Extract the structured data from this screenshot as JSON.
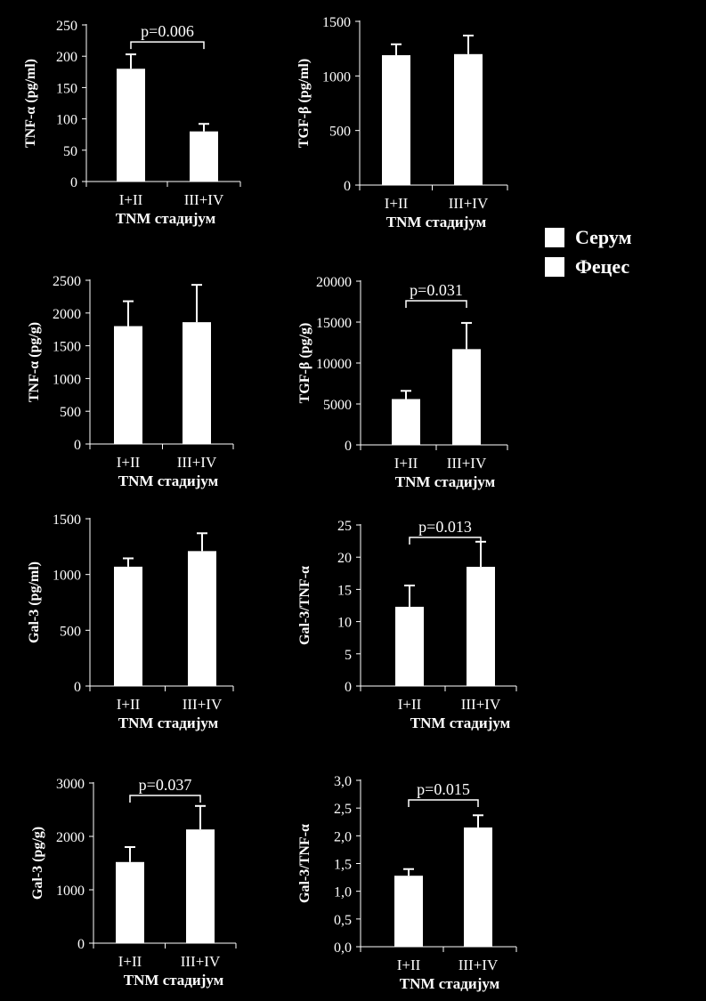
{
  "legend": {
    "items": [
      "Серум",
      "Фецес"
    ]
  },
  "chart_data": [
    {
      "type": "bar",
      "ylabel": "TNF-α (pg/ml)",
      "xlabel": "TNM стадијум",
      "categories": [
        "I+II",
        "III+IV"
      ],
      "values": [
        180,
        80
      ],
      "errors": [
        23,
        12
      ],
      "ylim": [
        0,
        250
      ],
      "yticks": [
        0,
        50,
        100,
        150,
        200,
        250
      ],
      "yticklabels": [
        "0",
        "50",
        "100",
        "150",
        "200",
        "250"
      ],
      "pvalue": "p=0.006"
    },
    {
      "type": "bar",
      "ylabel": "TGF-β (pg/ml)",
      "xlabel": "TNM стадијум",
      "categories": [
        "I+II",
        "III+IV"
      ],
      "values": [
        1190,
        1200
      ],
      "errors": [
        100,
        170
      ],
      "ylim": [
        0,
        1500
      ],
      "yticks": [
        0,
        500,
        1000,
        1500
      ],
      "yticklabels": [
        "0",
        "500",
        "1000",
        "1500"
      ],
      "pvalue": ""
    },
    {
      "type": "bar",
      "ylabel": "TNF-α (pg/g)",
      "xlabel": "TNM стадијум",
      "categories": [
        "I+II",
        "III+IV"
      ],
      "values": [
        1800,
        1860
      ],
      "errors": [
        380,
        570
      ],
      "ylim": [
        0,
        2500
      ],
      "yticks": [
        0,
        500,
        1000,
        1500,
        2000,
        2500
      ],
      "yticklabels": [
        "0",
        "500",
        "1000",
        "1500",
        "2000",
        "2500"
      ],
      "pvalue": ""
    },
    {
      "type": "bar",
      "ylabel": "TGF-β (pg/g)",
      "xlabel": "TNM стадијум",
      "categories": [
        "I+II",
        "III+IV"
      ],
      "values": [
        5600,
        11700
      ],
      "errors": [
        1000,
        3200
      ],
      "ylim": [
        0,
        20000
      ],
      "yticks": [
        0,
        5000,
        10000,
        15000,
        20000
      ],
      "yticklabels": [
        "0",
        "5000",
        "10000",
        "15000",
        "20000"
      ],
      "pvalue": "p=0.031"
    },
    {
      "type": "bar",
      "ylabel": "Gal-3 (pg/ml)",
      "xlabel": "TNM стадијум",
      "categories": [
        "I+II",
        "III+IV"
      ],
      "values": [
        1070,
        1210
      ],
      "errors": [
        75,
        160
      ],
      "ylim": [
        0,
        1500
      ],
      "yticks": [
        0,
        500,
        1000,
        1500
      ],
      "yticklabels": [
        "0",
        "500",
        "1000",
        "1500"
      ],
      "pvalue": ""
    },
    {
      "type": "bar",
      "ylabel": "Gal-3/TNF-α",
      "xlabel": "TNM стадијум",
      "categories": [
        "I+II",
        "III+IV"
      ],
      "values": [
        12.3,
        18.5
      ],
      "errors": [
        3.3,
        3.9
      ],
      "ylim": [
        0,
        25
      ],
      "yticks": [
        0,
        5,
        10,
        15,
        20,
        25
      ],
      "yticklabels": [
        "0",
        "5",
        "10",
        "15",
        "20",
        "25"
      ],
      "pvalue": "p=0.013"
    },
    {
      "type": "bar",
      "ylabel": "Gal-3 (pg/g)",
      "xlabel": "TNM стадијум",
      "categories": [
        "I+II",
        "III+IV"
      ],
      "values": [
        1520,
        2130
      ],
      "errors": [
        280,
        440
      ],
      "ylim": [
        0,
        3000
      ],
      "yticks": [
        0,
        1000,
        2000,
        3000
      ],
      "yticklabels": [
        "0",
        "1000",
        "2000",
        "3000"
      ],
      "pvalue": "p=0.037"
    },
    {
      "type": "bar",
      "ylabel": "Gal-3/TNF-α",
      "xlabel": "TNM стадијум",
      "categories": [
        "I+II",
        "III+IV"
      ],
      "values": [
        1.28,
        2.15
      ],
      "errors": [
        0.12,
        0.22
      ],
      "ylim": [
        0,
        3
      ],
      "yticks": [
        0,
        0.5,
        1,
        1.5,
        2,
        2.5,
        3
      ],
      "yticklabels": [
        "0,0",
        "0,5",
        "1,0",
        "1,5",
        "2,0",
        "2,5",
        "3,0"
      ],
      "pvalue": "p=0.015"
    }
  ]
}
